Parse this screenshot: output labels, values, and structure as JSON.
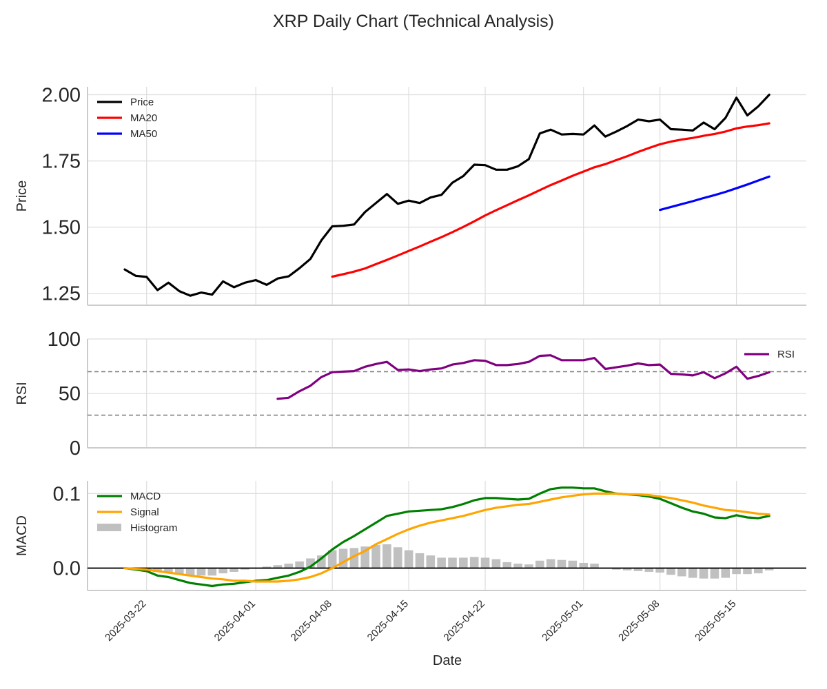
{
  "chart_data": {
    "type": "line",
    "title": "XRP Daily Chart (Technical Analysis)",
    "xlabel": "Date",
    "x_tick_labels": [
      "2025-03-22",
      "2025-04-01",
      "2025-04-08",
      "2025-04-15",
      "2025-04-22",
      "2025-05-01",
      "2025-05-08",
      "2025-05-15"
    ],
    "dates": [
      "2025-03-20",
      "2025-03-21",
      "2025-03-22",
      "2025-03-23",
      "2025-03-24",
      "2025-03-25",
      "2025-03-26",
      "2025-03-27",
      "2025-03-28",
      "2025-03-29",
      "2025-03-30",
      "2025-03-31",
      "2025-04-01",
      "2025-04-02",
      "2025-04-03",
      "2025-04-04",
      "2025-04-05",
      "2025-04-06",
      "2025-04-07",
      "2025-04-08",
      "2025-04-09",
      "2025-04-10",
      "2025-04-11",
      "2025-04-12",
      "2025-04-13",
      "2025-04-14",
      "2025-04-15",
      "2025-04-16",
      "2025-04-17",
      "2025-04-18",
      "2025-04-19",
      "2025-04-20",
      "2025-04-21",
      "2025-04-22",
      "2025-04-23",
      "2025-04-24",
      "2025-04-25",
      "2025-04-26",
      "2025-04-27",
      "2025-04-28",
      "2025-04-29",
      "2025-04-30",
      "2025-05-01",
      "2025-05-02",
      "2025-05-03",
      "2025-05-04",
      "2025-05-05",
      "2025-05-06",
      "2025-05-07",
      "2025-05-08",
      "2025-05-09",
      "2025-05-10",
      "2025-05-11",
      "2025-05-12",
      "2025-05-13",
      "2025-05-14",
      "2025-05-15",
      "2025-05-16",
      "2025-05-17",
      "2025-05-18"
    ],
    "panels": [
      {
        "id": "price",
        "ylabel": "Price",
        "ylim": [
          1.205,
          2.03
        ],
        "yticks": [
          1.25,
          1.5,
          1.75,
          2.0
        ],
        "ytick_labels": [
          "1.25",
          "1.50",
          "1.75",
          "2.00"
        ],
        "legend_position": "top-left",
        "series": [
          {
            "name": "Price",
            "color": "#000000",
            "values": [
              1.34,
              1.316,
              1.312,
              1.262,
              1.29,
              1.258,
              1.241,
              1.253,
              1.245,
              1.295,
              1.273,
              1.29,
              1.3,
              1.282,
              1.306,
              1.314,
              1.345,
              1.38,
              1.45,
              1.503,
              1.505,
              1.51,
              1.557,
              1.591,
              1.625,
              1.588,
              1.6,
              1.591,
              1.612,
              1.622,
              1.668,
              1.693,
              1.736,
              1.734,
              1.717,
              1.717,
              1.73,
              1.757,
              1.854,
              1.868,
              1.85,
              1.852,
              1.85,
              1.884,
              1.842,
              1.861,
              1.882,
              1.906,
              1.9,
              1.906,
              1.87,
              1.868,
              1.865,
              1.895,
              1.87,
              1.913,
              1.989,
              1.922,
              1.956,
              2.0
            ]
          },
          {
            "name": "MA20",
            "color": "#ff0000",
            "values": [
              null,
              null,
              null,
              null,
              null,
              null,
              null,
              null,
              null,
              null,
              null,
              null,
              null,
              null,
              null,
              null,
              null,
              null,
              null,
              1.313,
              1.322,
              1.332,
              1.344,
              1.36,
              1.376,
              1.393,
              1.41,
              1.427,
              1.445,
              1.462,
              1.481,
              1.501,
              1.522,
              1.544,
              1.564,
              1.583,
              1.602,
              1.62,
              1.64,
              1.659,
              1.676,
              1.694,
              1.71,
              1.726,
              1.738,
              1.753,
              1.768,
              1.784,
              1.799,
              1.813,
              1.823,
              1.831,
              1.837,
              1.845,
              1.852,
              1.861,
              1.873,
              1.88,
              1.885,
              1.892
            ]
          },
          {
            "name": "MA50",
            "color": "#0000ff",
            "values": [
              null,
              null,
              null,
              null,
              null,
              null,
              null,
              null,
              null,
              null,
              null,
              null,
              null,
              null,
              null,
              null,
              null,
              null,
              null,
              null,
              null,
              null,
              null,
              null,
              null,
              null,
              null,
              null,
              null,
              null,
              null,
              null,
              null,
              null,
              null,
              null,
              null,
              null,
              null,
              null,
              null,
              null,
              null,
              null,
              null,
              null,
              null,
              null,
              null,
              1.565,
              1.576,
              1.587,
              1.598,
              1.61,
              1.621,
              1.633,
              1.647,
              1.661,
              1.676,
              1.691
            ]
          }
        ]
      },
      {
        "id": "rsi",
        "ylabel": "RSI",
        "ylim": [
          0,
          100
        ],
        "yticks": [
          0,
          50,
          100
        ],
        "ytick_labels": [
          "0",
          "50",
          "100"
        ],
        "hlines": [
          70,
          30
        ],
        "legend_position": "top-right",
        "series": [
          {
            "name": "RSI",
            "color": "#800080",
            "values": [
              null,
              null,
              null,
              null,
              null,
              null,
              null,
              null,
              null,
              null,
              null,
              null,
              null,
              null,
              45,
              46,
              52,
              57,
              65,
              69.5,
              70,
              70.5,
              74.5,
              77,
              79,
              71.5,
              72,
              70.5,
              72,
              73,
              76.5,
              78,
              80.5,
              80,
              76,
              76,
              77,
              79,
              84.5,
              85,
              80.5,
              80.5,
              80.5,
              82.5,
              72.5,
              74,
              75.5,
              77.5,
              76,
              76.5,
              68,
              67.5,
              66.5,
              69.5,
              64,
              68.5,
              74.5,
              63.5,
              66,
              69.5
            ]
          }
        ]
      },
      {
        "id": "macd",
        "ylabel": "MACD",
        "ylim": [
          -0.03,
          0.117
        ],
        "yticks": [
          0.0,
          0.1
        ],
        "ytick_labels": [
          "0.0",
          "0.1"
        ],
        "zero_line": true,
        "legend_position": "top-left",
        "series": [
          {
            "name": "MACD",
            "color": "#008000",
            "values": [
              0,
              -0.002,
              -0.004,
              -0.01,
              -0.012,
              -0.016,
              -0.02,
              -0.022,
              -0.024,
              -0.022,
              -0.021,
              -0.019,
              -0.017,
              -0.016,
              -0.013,
              -0.01,
              -0.005,
              0.002,
              0.013,
              0.025,
              0.035,
              0.043,
              0.052,
              0.061,
              0.07,
              0.073,
              0.076,
              0.077,
              0.078,
              0.079,
              0.082,
              0.086,
              0.091,
              0.094,
              0.094,
              0.093,
              0.092,
              0.093,
              0.1,
              0.106,
              0.108,
              0.108,
              0.107,
              0.107,
              0.103,
              0.1,
              0.099,
              0.098,
              0.096,
              0.093,
              0.087,
              0.081,
              0.076,
              0.073,
              0.068,
              0.067,
              0.071,
              0.068,
              0.067,
              0.07
            ]
          },
          {
            "name": "Signal",
            "color": "#ffa500",
            "values": [
              0,
              -0.001,
              -0.002,
              -0.004,
              -0.006,
              -0.008,
              -0.01,
              -0.012,
              -0.014,
              -0.015,
              -0.017,
              -0.017,
              -0.018,
              -0.018,
              -0.018,
              -0.017,
              -0.015,
              -0.012,
              -0.007,
              0,
              0.008,
              0.016,
              0.023,
              0.032,
              0.039,
              0.046,
              0.052,
              0.057,
              0.061,
              0.064,
              0.067,
              0.07,
              0.074,
              0.078,
              0.081,
              0.083,
              0.085,
              0.086,
              0.089,
              0.092,
              0.095,
              0.097,
              0.099,
              0.1,
              0.1,
              0.1,
              0.099,
              0.099,
              0.098,
              0.096,
              0.094,
              0.091,
              0.088,
              0.084,
              0.081,
              0.078,
              0.077,
              0.075,
              0.073,
              0.072
            ]
          },
          {
            "name": "Histogram",
            "color": "#c0c0c0",
            "values": [
              0,
              -0.001,
              -0.002,
              -0.005,
              -0.006,
              -0.008,
              -0.01,
              -0.01,
              -0.01,
              -0.007,
              -0.005,
              -0.002,
              0,
              0.002,
              0.004,
              0.006,
              0.009,
              0.013,
              0.017,
              0.024,
              0.026,
              0.027,
              0.029,
              0.031,
              0.032,
              0.028,
              0.024,
              0.02,
              0.017,
              0.014,
              0.014,
              0.014,
              0.015,
              0.014,
              0.012,
              0.008,
              0.006,
              0.005,
              0.01,
              0.012,
              0.011,
              0.01,
              0.007,
              0.006,
              0,
              -0.002,
              -0.003,
              -0.004,
              -0.005,
              -0.006,
              -0.009,
              -0.011,
              -0.013,
              -0.014,
              -0.014,
              -0.013,
              -0.008,
              -0.008,
              -0.007,
              -0.003
            ]
          }
        ]
      }
    ]
  }
}
